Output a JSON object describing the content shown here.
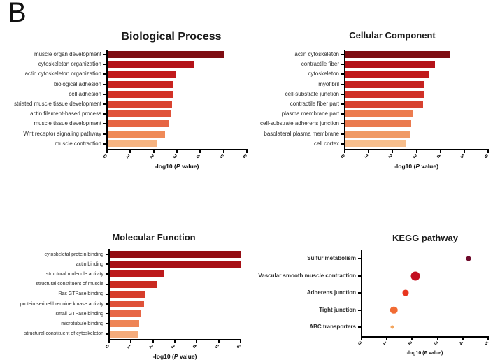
{
  "panel_label": "B",
  "chart_data": [
    {
      "id": "biological-process",
      "type": "bar",
      "title": "Biological Process",
      "xlabel_prefix": "-log10 (",
      "xlabel_italic": "P",
      "xlabel_suffix": " value)",
      "xlim": [
        0,
        6
      ],
      "xticks": [
        0,
        1,
        2,
        3,
        4,
        5,
        6
      ],
      "categories": [
        "muscle organ development",
        "cytoskeleton organization",
        "actin cytoskeleton organization",
        "biological adhesion",
        "cell adhesion",
        "striated muscle tissue development",
        "actin filament-based process",
        "muscle tissue development",
        "Wnt receptor signaling pathway",
        "muscle contraction"
      ],
      "values": [
        5.0,
        3.7,
        2.95,
        2.8,
        2.8,
        2.75,
        2.7,
        2.6,
        2.45,
        2.1
      ],
      "colors": [
        "#7E0D12",
        "#B31218",
        "#C11A1B",
        "#C8231F",
        "#D23227",
        "#D94330",
        "#E0533A",
        "#E66543",
        "#EF8A58",
        "#F6B380"
      ]
    },
    {
      "id": "cellular-component",
      "type": "bar",
      "title": "Cellular Component",
      "xlabel_prefix": "-log10 (",
      "xlabel_italic": "P",
      "xlabel_suffix": " value)",
      "xlim": [
        0,
        6
      ],
      "xticks": [
        0,
        1,
        2,
        3,
        4,
        5,
        6
      ],
      "categories": [
        "actin cytoskeleton",
        "contractile fiber",
        "cytoskeleton",
        "myofibril",
        "cell-substrate junction",
        "contractile fiber part",
        "plasma membrane part",
        "cell-substrate adherens junction",
        "basolateral plasma membrane",
        "cell cortex"
      ],
      "values": [
        4.4,
        3.75,
        3.5,
        3.3,
        3.3,
        3.25,
        2.8,
        2.75,
        2.7,
        2.55
      ],
      "colors": [
        "#7E0D12",
        "#B31218",
        "#C01A1B",
        "#C52220",
        "#D03127",
        "#D74230",
        "#EC7C4F",
        "#EA7A4E",
        "#F09A66",
        "#F7BE8C"
      ]
    },
    {
      "id": "molecular-function",
      "type": "bar",
      "title": "Molecular Function",
      "xlabel_prefix": "-log10 (",
      "xlabel_italic": "P",
      "xlabel_suffix": " value)",
      "xlim": [
        0,
        6
      ],
      "xticks": [
        0,
        1,
        2,
        3,
        4,
        5,
        6
      ],
      "categories": [
        "cytoskeletal protein binding",
        "actin binding",
        "structural molecule activity",
        "structural constituent of muscle",
        "Ras GTPase binding",
        "protein serine/threonine kinase activity",
        "small GTPase binding",
        "microtubule binding",
        "structural constituent of cytoskeleton"
      ],
      "values": [
        6.0,
        6.0,
        2.5,
        2.15,
        1.6,
        1.55,
        1.45,
        1.35,
        1.3
      ],
      "colors": [
        "#930D13",
        "#A70F15",
        "#BC191B",
        "#CA2A21",
        "#D63D2B",
        "#DF5239",
        "#E76746",
        "#EE8455",
        "#F5AB7B"
      ]
    },
    {
      "id": "kegg-pathway",
      "type": "dot",
      "title": "KEGG pathway",
      "xlabel_prefix": "-log10 (",
      "xlabel_italic": "P",
      "xlabel_suffix": " value)",
      "xlim": [
        0,
        5
      ],
      "xticks": [
        0,
        1,
        2,
        3,
        4,
        5
      ],
      "categories": [
        "Sulfur metabolism",
        "Vascular smooth muscle contraction",
        "Adherens junction",
        "Tight junction",
        "ABC transporters"
      ],
      "values": [
        4.2,
        2.1,
        1.7,
        1.25,
        1.2
      ],
      "dot_sizes": [
        7,
        13,
        9,
        10.5,
        5
      ],
      "colors": [
        "#6E0A2B",
        "#C30E20",
        "#E8351F",
        "#F16B33",
        "#F3A55E"
      ]
    }
  ]
}
